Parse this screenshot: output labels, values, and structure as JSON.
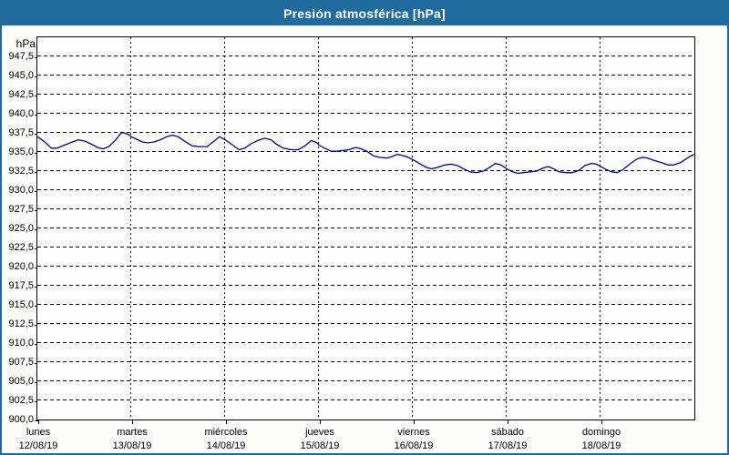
{
  "window": {
    "title": "Presión atmosférica [hPa]"
  },
  "colors": {
    "header_bg": "#1f6b9e",
    "frame_border": "#1f6b9e",
    "page_bg": "#fbfdf9",
    "plot_bg": "#fdfefc",
    "gridline": "#000000",
    "line": "#0000a0",
    "title_text": "#ffffff",
    "label_text": "#000000"
  },
  "chart_data": {
    "type": "line",
    "title": "Presión atmosférica [hPa]",
    "ylabel": "hPa",
    "ylim": [
      900,
      950
    ],
    "y_tick_step": 2.5,
    "grid": "dashed",
    "legend": "none",
    "y_tick_labels": [
      "947,5",
      "945,0",
      "942,5",
      "940,0",
      "937,5",
      "935,0",
      "932,5",
      "930,0",
      "927,5",
      "925,0",
      "922,5",
      "920,0",
      "917,5",
      "915,0",
      "912,5",
      "910,0",
      "907,5",
      "905,0",
      "902,5",
      "900,0"
    ],
    "x_ticks": [
      {
        "day": "lunes",
        "date": "12/08/19"
      },
      {
        "day": "martes",
        "date": "13/08/19"
      },
      {
        "day": "miércoles",
        "date": "14/08/19"
      },
      {
        "day": "jueves",
        "date": "15/08/19"
      },
      {
        "day": "viernes",
        "date": "16/08/19"
      },
      {
        "day": "sábado",
        "date": "17/08/19"
      },
      {
        "day": "domingo",
        "date": "18/08/19"
      }
    ],
    "series": [
      {
        "name": "Presión atmosférica",
        "color": "#0000a0",
        "x_unit": "days_since_2019-08-12",
        "points": [
          [
            0.0,
            937.0
          ],
          [
            0.07,
            936.4
          ],
          [
            0.15,
            935.5
          ],
          [
            0.21,
            935.5
          ],
          [
            0.29,
            935.9
          ],
          [
            0.37,
            936.3
          ],
          [
            0.44,
            936.6
          ],
          [
            0.51,
            936.4
          ],
          [
            0.58,
            936.0
          ],
          [
            0.64,
            935.6
          ],
          [
            0.7,
            935.4
          ],
          [
            0.76,
            935.7
          ],
          [
            0.83,
            936.5
          ],
          [
            0.9,
            937.6
          ],
          [
            0.97,
            937.3
          ],
          [
            1.0,
            937.0
          ],
          [
            1.07,
            936.6
          ],
          [
            1.12,
            936.3
          ],
          [
            1.18,
            936.2
          ],
          [
            1.24,
            936.3
          ],
          [
            1.31,
            936.6
          ],
          [
            1.38,
            937.0
          ],
          [
            1.44,
            937.2
          ],
          [
            1.5,
            937.0
          ],
          [
            1.57,
            936.4
          ],
          [
            1.65,
            935.8
          ],
          [
            1.73,
            935.7
          ],
          [
            1.81,
            935.7
          ],
          [
            1.87,
            936.3
          ],
          [
            1.94,
            937.0
          ],
          [
            2.0,
            936.6
          ],
          [
            2.07,
            936.0
          ],
          [
            2.15,
            935.3
          ],
          [
            2.21,
            935.5
          ],
          [
            2.28,
            936.1
          ],
          [
            2.35,
            936.5
          ],
          [
            2.42,
            936.8
          ],
          [
            2.49,
            936.6
          ],
          [
            2.55,
            936.0
          ],
          [
            2.62,
            935.5
          ],
          [
            2.7,
            935.3
          ],
          [
            2.78,
            935.3
          ],
          [
            2.85,
            935.8
          ],
          [
            2.92,
            936.5
          ],
          [
            2.98,
            936.2
          ],
          [
            3.0,
            935.9
          ],
          [
            3.06,
            935.5
          ],
          [
            3.13,
            935.1
          ],
          [
            3.19,
            935.1
          ],
          [
            3.26,
            935.2
          ],
          [
            3.32,
            935.3
          ],
          [
            3.39,
            935.6
          ],
          [
            3.45,
            935.4
          ],
          [
            3.51,
            935.1
          ],
          [
            3.58,
            934.5
          ],
          [
            3.65,
            934.3
          ],
          [
            3.72,
            934.2
          ],
          [
            3.78,
            934.4
          ],
          [
            3.84,
            934.7
          ],
          [
            3.93,
            934.4
          ],
          [
            4.0,
            934.0
          ],
          [
            4.07,
            933.5
          ],
          [
            4.14,
            933.0
          ],
          [
            4.2,
            932.8
          ],
          [
            4.27,
            933.0
          ],
          [
            4.34,
            933.3
          ],
          [
            4.41,
            933.4
          ],
          [
            4.48,
            933.2
          ],
          [
            4.54,
            932.8
          ],
          [
            4.61,
            932.4
          ],
          [
            4.68,
            932.3
          ],
          [
            4.75,
            932.5
          ],
          [
            4.82,
            933.0
          ],
          [
            4.88,
            933.5
          ],
          [
            4.94,
            933.3
          ],
          [
            5.0,
            932.8
          ],
          [
            5.06,
            932.4
          ],
          [
            5.12,
            932.2
          ],
          [
            5.18,
            932.3
          ],
          [
            5.25,
            932.4
          ],
          [
            5.32,
            932.5
          ],
          [
            5.39,
            932.9
          ],
          [
            5.44,
            933.1
          ],
          [
            5.5,
            932.8
          ],
          [
            5.56,
            932.4
          ],
          [
            5.63,
            932.3
          ],
          [
            5.7,
            932.3
          ],
          [
            5.77,
            932.6
          ],
          [
            5.83,
            933.2
          ],
          [
            5.9,
            933.5
          ],
          [
            5.96,
            933.4
          ],
          [
            6.0,
            933.1
          ],
          [
            6.06,
            932.7
          ],
          [
            6.12,
            932.4
          ],
          [
            6.18,
            932.3
          ],
          [
            6.24,
            932.7
          ],
          [
            6.32,
            933.5
          ],
          [
            6.39,
            934.1
          ],
          [
            6.45,
            934.3
          ],
          [
            6.5,
            934.2
          ],
          [
            6.57,
            933.9
          ],
          [
            6.65,
            933.6
          ],
          [
            6.72,
            933.3
          ],
          [
            6.78,
            933.3
          ],
          [
            6.85,
            933.6
          ],
          [
            6.9,
            934.0
          ],
          [
            6.95,
            934.4
          ],
          [
            7.0,
            934.7
          ]
        ]
      }
    ]
  }
}
